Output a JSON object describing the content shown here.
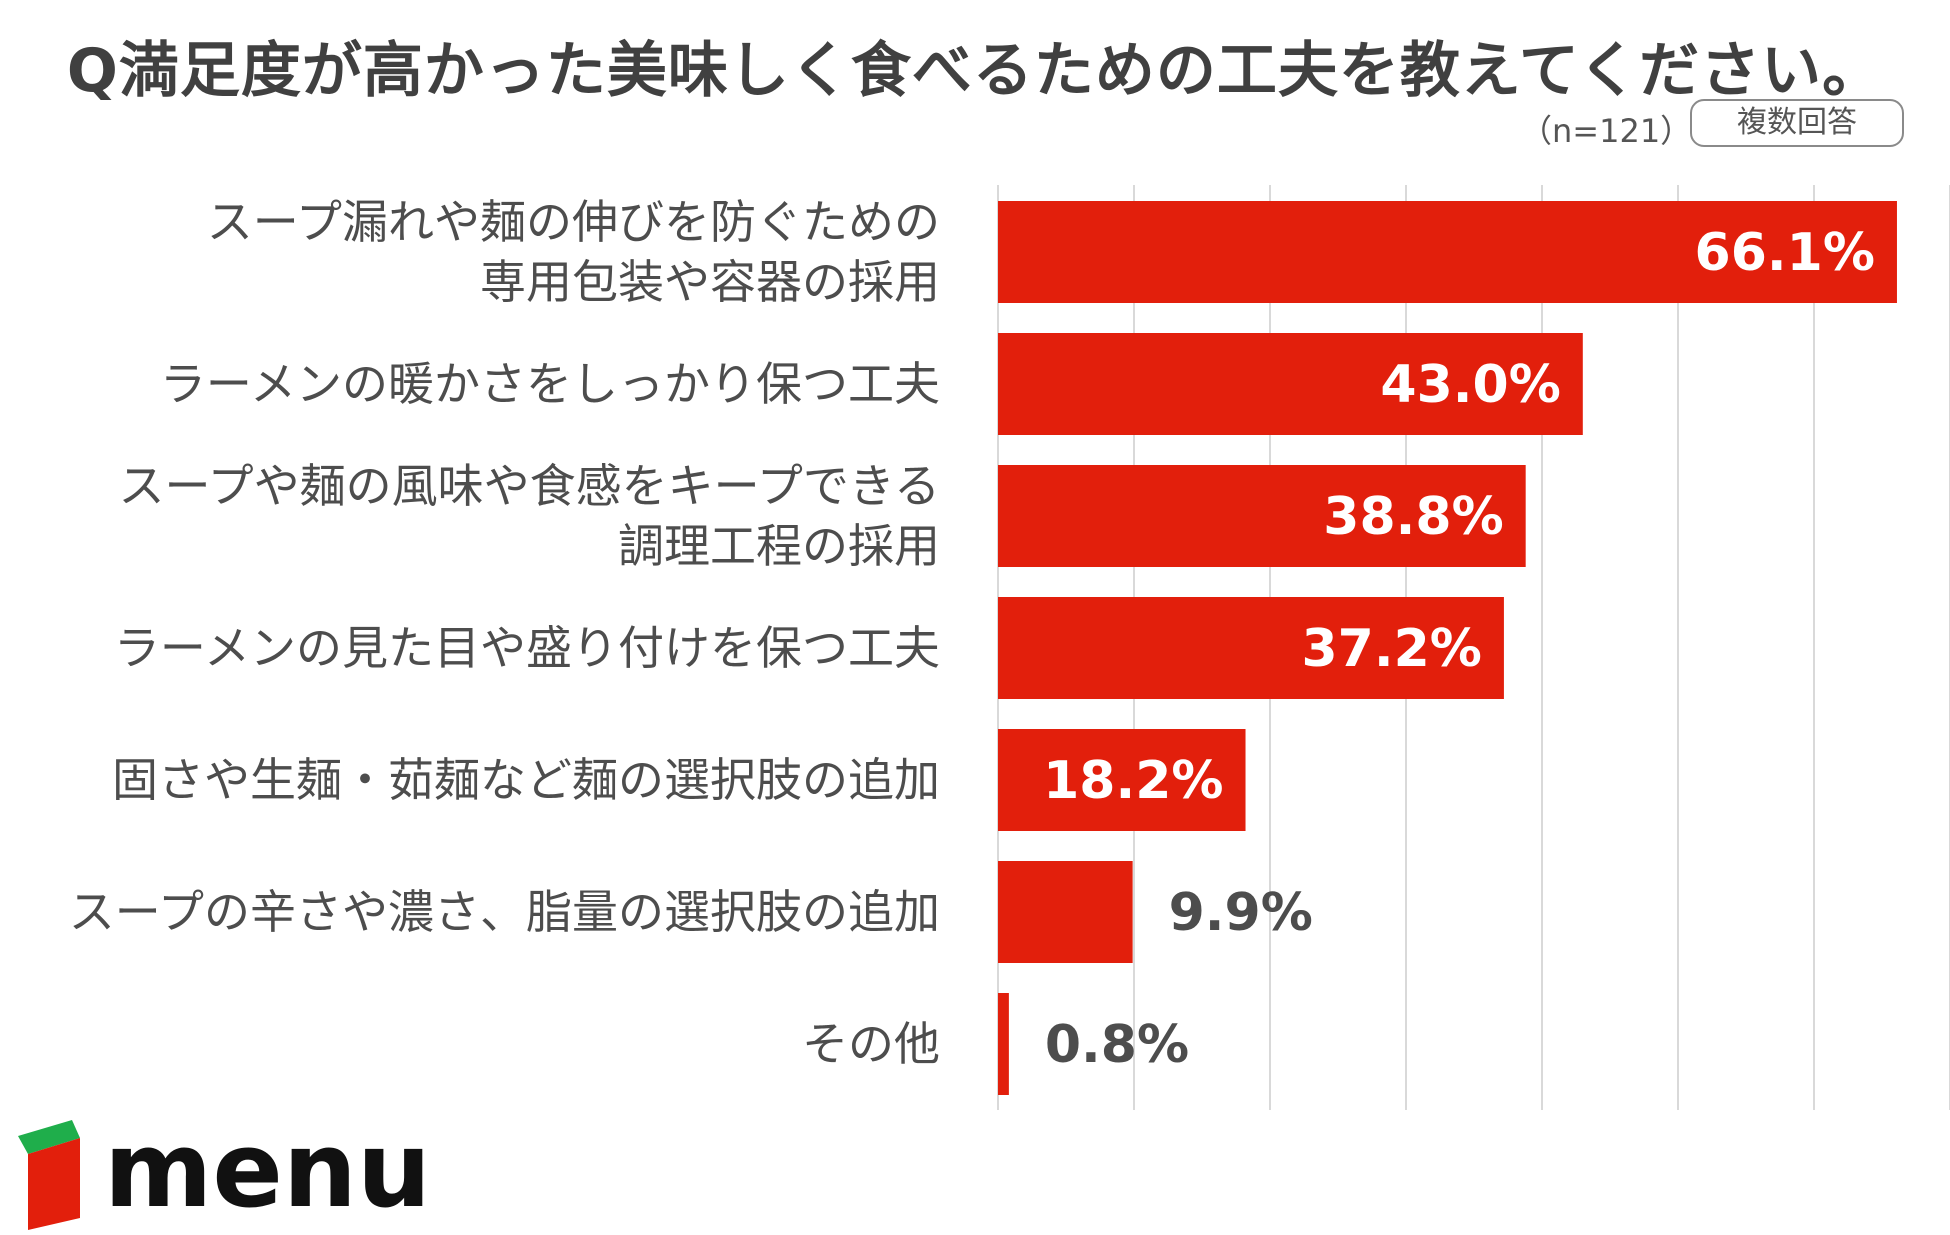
{
  "title": "Q満足度が高かった美味しく食べるための工夫を教えてください。",
  "sample_size": "（n=121）",
  "answer_type": "複数回答",
  "colors": {
    "bar": "#e21f0c",
    "label_inside": "#ffffff",
    "label_outside": "#4d4d4d",
    "category_text": "#4d4d4d",
    "grid": "#d9d9d9",
    "logo_green": "#1fae4b",
    "logo_red": "#e21f0c"
  },
  "logo": {
    "text": "menu",
    "icon": "box-logo-icon"
  },
  "chart_data": {
    "type": "bar",
    "orientation": "horizontal",
    "categories": [
      [
        "スープ漏れや麺の伸びを防ぐための",
        "専用包装や容器の採用"
      ],
      [
        "ラーメンの暖かさをしっかり保つ工夫"
      ],
      [
        "スープや麺の風味や食感をキープできる",
        "調理工程の採用"
      ],
      [
        "ラーメンの見た目や盛り付けを保つ工夫"
      ],
      [
        "固さや生麺・茹麺など麺の選択肢の追加"
      ],
      [
        "スープの辛さや濃さ、脂量の選択肢の追加"
      ],
      [
        "その他"
      ]
    ],
    "values": [
      66.1,
      43.0,
      38.8,
      37.2,
      18.2,
      9.9,
      0.8
    ],
    "value_labels": [
      "66.1%",
      "43.0%",
      "38.8%",
      "37.2%",
      "18.2%",
      "9.9%",
      "0.8%"
    ],
    "xlim": [
      0,
      70
    ],
    "grid": true,
    "legend": "none"
  }
}
